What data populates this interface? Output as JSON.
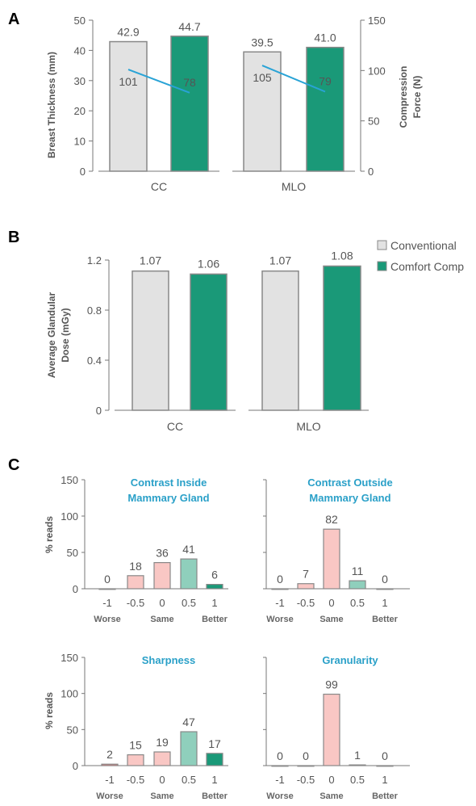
{
  "colors": {
    "conventional": "#e2e2e2",
    "comfort": "#1a9978",
    "line": "#29a3d6",
    "worse_dark": "#e88080",
    "worse_light": "#f9c7c4",
    "better_light": "#8fcfbc",
    "better_dark": "#1a9978",
    "outline": "#888888"
  },
  "legend": [
    "Conventional",
    "Comfort Comp"
  ],
  "chart_data": [
    {
      "panel": "A",
      "type": "bar",
      "ylabel": "Breast Thickness (mm)",
      "y2label_line1": "Compression",
      "y2label_line2": "Force (N)",
      "ylim": [
        0,
        50
      ],
      "yticks": [
        "0",
        "10",
        "20",
        "30",
        "40",
        "50"
      ],
      "y2lim": [
        0,
        150
      ],
      "y2ticks": [
        "0",
        "50",
        "100",
        "150"
      ],
      "groups": [
        {
          "category": "CC",
          "values": [
            42.9,
            44.7
          ],
          "labels": [
            "42.9",
            "44.7"
          ],
          "force": [
            101,
            78
          ],
          "force_labels": [
            "101",
            "78"
          ]
        },
        {
          "category": "MLO",
          "values": [
            39.5,
            41.0
          ],
          "labels": [
            "39.5",
            "41.0"
          ],
          "force": [
            105,
            79
          ],
          "force_labels": [
            "105",
            "79"
          ]
        }
      ]
    },
    {
      "panel": "B",
      "type": "bar",
      "ylabel_line1": "Average Glandular",
      "ylabel_line2": "Dose (mGy)",
      "ylim": [
        0,
        1.2
      ],
      "yticks": [
        "0",
        "0.4",
        "0.8",
        "1.2"
      ],
      "groups": [
        {
          "category": "CC",
          "values": [
            1.07,
            1.06
          ],
          "labels": [
            "1.07",
            "1.06"
          ]
        },
        {
          "category": "MLO",
          "values": [
            1.07,
            1.08
          ],
          "labels": [
            "1.07",
            "1.08"
          ]
        }
      ]
    },
    {
      "panel": "C",
      "type": "bar",
      "ylabel": "% reads",
      "ylim": [
        0,
        150
      ],
      "yticks": [
        "0",
        "50",
        "100",
        "150"
      ],
      "categories": [
        "-1",
        "-0.5",
        "0",
        "0.5",
        "1"
      ],
      "scale_labels": [
        "Worse",
        "Same",
        "Better"
      ],
      "subplots": [
        {
          "title_line1": "Contrast Inside",
          "title_line2": "Mammary Gland",
          "values": [
            0,
            18,
            36,
            41,
            6
          ],
          "labels": [
            "0",
            "18",
            "36",
            "41",
            "6"
          ]
        },
        {
          "title_line1": "Contrast Outside",
          "title_line2": "Mammary Gland",
          "values": [
            0,
            7,
            82,
            11,
            0
          ],
          "labels": [
            "0",
            "7",
            "82",
            "11",
            "0"
          ]
        },
        {
          "title_line1": "Sharpness",
          "title_line2": "",
          "values": [
            2,
            15,
            19,
            47,
            17
          ],
          "labels": [
            "2",
            "15",
            "19",
            "47",
            "17"
          ]
        },
        {
          "title_line1": "Granularity",
          "title_line2": "",
          "values": [
            0,
            0,
            99,
            1,
            0
          ],
          "labels": [
            "0",
            "0",
            "99",
            "1",
            "0"
          ]
        }
      ]
    }
  ]
}
